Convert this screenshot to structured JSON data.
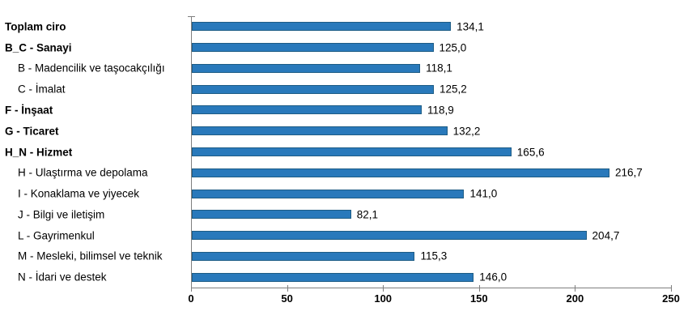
{
  "chart_data": {
    "type": "bar",
    "orientation": "horizontal",
    "title": "",
    "xlabel": "",
    "ylabel": "",
    "xlim": [
      0,
      250
    ],
    "xticks": [
      0,
      50,
      100,
      150,
      200,
      250
    ],
    "grid": false,
    "legend_position": "none",
    "decimal_separator": ",",
    "categories": [
      "Toplam ciro",
      "B_C - Sanayi",
      "B - Madencilik ve taşocakçılığı",
      "C - İmalat",
      "F - İnşaat",
      "G - Ticaret",
      "H_N - Hizmet",
      "H - Ulaştırma ve depolama",
      "I - Konaklama ve yiyecek",
      "J - Bilgi ve iletişim",
      "L - Gayrimenkul",
      "M - Mesleki, bilimsel ve teknik",
      "N - İdari ve destek"
    ],
    "values": [
      134.1,
      125.0,
      118.1,
      125.2,
      118.9,
      132.2,
      165.6,
      216.7,
      141.0,
      82.1,
      204.7,
      115.3,
      146.0
    ],
    "value_labels": [
      "134,1",
      "125,0",
      "118,1",
      "125,2",
      "118,9",
      "132,2",
      "165,6",
      "216,7",
      "141,0",
      "82,1",
      "204,7",
      "115,3",
      "146,0"
    ],
    "emphasis_bold": [
      true,
      true,
      false,
      false,
      true,
      true,
      true,
      false,
      false,
      false,
      false,
      false,
      false
    ],
    "indented": [
      false,
      false,
      true,
      true,
      false,
      false,
      false,
      true,
      true,
      true,
      true,
      true,
      true
    ],
    "colors": {
      "bar_fill": "#2979BB",
      "bar_border": "#1D5C85",
      "axis": "#7f7f7f",
      "text": "#000000",
      "background": "#ffffff"
    }
  }
}
